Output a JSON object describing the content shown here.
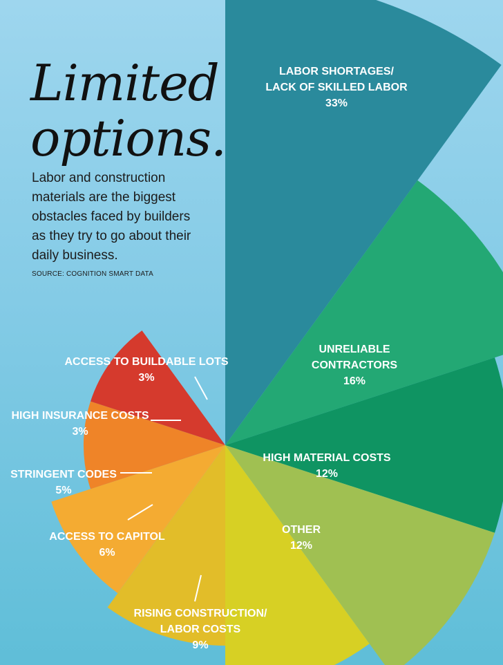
{
  "header": {
    "title_line1": "Limited",
    "title_line2": "options.",
    "description": "Labor and construction materials are the biggest obstacles faced by builders as they try to go about their daily business.",
    "source": "SOURCE: COGNITION SMART DATA"
  },
  "chart_data": {
    "type": "pie",
    "variant": "polar-area (radius scaled by value)",
    "slices": [
      {
        "label_lines": [
          "LABOR SHORTAGES/",
          "LACK OF SKILLED LABOR"
        ],
        "value_label": "33%",
        "value": 33,
        "color": "#2a8a9c"
      },
      {
        "label_lines": [
          "UNRELIABLE",
          "CONTRACTORS"
        ],
        "value_label": "16%",
        "value": 16,
        "color": "#23a874"
      },
      {
        "label_lines": [
          "HIGH MATERIAL COSTS"
        ],
        "value_label": "12%",
        "value": 12,
        "color": "#0f9462"
      },
      {
        "label_lines": [
          "OTHER"
        ],
        "value_label": "12%",
        "value": 12,
        "color": "#a0c052"
      },
      {
        "label_lines": [
          "RISING CONSTRUCTION/",
          "LABOR COSTS"
        ],
        "value_label": "9%",
        "value": 9,
        "color": "#d7d024"
      },
      {
        "label_lines": [
          "ACCESS TO CAPITOL"
        ],
        "value_label": "6%",
        "value": 6,
        "color": "#e2bd29"
      },
      {
        "label_lines": [
          "STRINGENT CODES"
        ],
        "value_label": "5%",
        "value": 5,
        "color": "#f4ab32"
      },
      {
        "label_lines": [
          "HIGH INSURANCE COSTS"
        ],
        "value_label": "3%",
        "value": 3,
        "color": "#ef8428"
      },
      {
        "label_lines": [
          "ACCESS TO BUILDABLE LOTS"
        ],
        "value_label": "3%",
        "value": 3,
        "color": "#d53a2d"
      }
    ]
  }
}
